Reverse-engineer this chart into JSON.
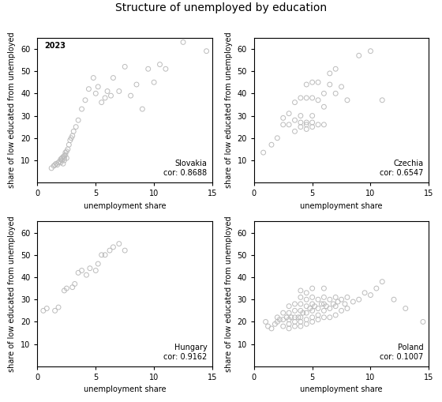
{
  "title": "Structure of unemployed by education",
  "year_label": "2023",
  "xlabel": "unemployment share",
  "ylabel": "share of low educated from unemployed",
  "xlim": [
    0,
    15
  ],
  "ylim": [
    0,
    65
  ],
  "xticks": [
    0,
    5,
    10,
    15
  ],
  "yticks": [
    10,
    20,
    30,
    40,
    50,
    60
  ],
  "background_color": "#ffffff",
  "marker_color": "#bbbbbb",
  "marker_size": 18,
  "marker_linewidth": 0.7,
  "countries": [
    "Slovakia",
    "Czechia",
    "Hungary",
    "Poland"
  ],
  "correlations": [
    "0.8688",
    "0.6547",
    "0.9162",
    "0.1007"
  ],
  "slovakia_x": [
    1.2,
    1.4,
    1.5,
    1.6,
    1.7,
    1.8,
    1.9,
    2.0,
    2.0,
    2.1,
    2.1,
    2.2,
    2.2,
    2.3,
    2.3,
    2.3,
    2.4,
    2.4,
    2.5,
    2.5,
    2.6,
    2.7,
    2.8,
    2.9,
    3.0,
    3.1,
    3.3,
    3.5,
    3.8,
    4.1,
    4.4,
    4.8,
    5.0,
    5.2,
    5.5,
    5.8,
    6.0,
    6.3,
    6.5,
    7.0,
    7.5,
    8.0,
    8.5,
    9.0,
    9.5,
    10.0,
    10.5,
    11.0,
    12.5,
    14.5
  ],
  "slovakia_y": [
    6.5,
    7.5,
    8.0,
    8.5,
    8.0,
    9.0,
    9.5,
    9.0,
    10.5,
    10.0,
    11.0,
    8.5,
    11.5,
    10.0,
    12.0,
    11.0,
    12.5,
    13.5,
    11.0,
    14.0,
    15.0,
    17.0,
    19.0,
    20.0,
    21.0,
    23.0,
    25.0,
    28.0,
    33.0,
    37.0,
    42.0,
    47.0,
    40.0,
    43.0,
    36.0,
    38.0,
    41.0,
    39.0,
    47.0,
    41.0,
    52.0,
    39.0,
    44.0,
    33.0,
    51.0,
    45.0,
    53.0,
    51.0,
    63.0,
    59.0
  ],
  "czechia_x": [
    0.8,
    1.5,
    2.0,
    2.5,
    2.5,
    3.0,
    3.0,
    3.5,
    3.5,
    3.5,
    4.0,
    4.0,
    4.0,
    4.0,
    4.5,
    4.5,
    4.5,
    4.5,
    4.5,
    5.0,
    5.0,
    5.0,
    5.0,
    5.0,
    5.5,
    5.5,
    5.5,
    6.0,
    6.0,
    6.0,
    6.5,
    6.5,
    7.0,
    7.0,
    7.5,
    8.0,
    9.0,
    10.0,
    11.0
  ],
  "czechia_y": [
    13.5,
    17.0,
    20.0,
    26.0,
    29.0,
    26.0,
    31.0,
    23.0,
    28.0,
    36.0,
    25.0,
    27.0,
    30.0,
    38.0,
    24.0,
    26.0,
    27.0,
    38.0,
    44.0,
    25.0,
    27.0,
    30.0,
    38.0,
    45.0,
    26.0,
    37.0,
    45.0,
    26.0,
    34.0,
    40.0,
    44.0,
    49.0,
    40.0,
    51.0,
    43.0,
    37.0,
    57.0,
    59.0,
    37.0
  ],
  "hungary_x": [
    0.5,
    0.8,
    1.5,
    1.8,
    2.3,
    2.5,
    3.0,
    3.2,
    3.5,
    3.8,
    4.2,
    4.5,
    5.0,
    5.2,
    5.5,
    5.8,
    6.2,
    6.5,
    7.0,
    7.5
  ],
  "hungary_y": [
    25.0,
    26.0,
    25.0,
    26.5,
    34.0,
    35.0,
    35.5,
    37.0,
    42.0,
    43.0,
    41.0,
    44.0,
    43.0,
    46.0,
    50.0,
    50.0,
    52.0,
    53.5,
    55.0,
    52.0
  ],
  "poland_x": [
    1.0,
    1.2,
    1.5,
    1.8,
    2.0,
    2.0,
    2.2,
    2.5,
    2.5,
    2.5,
    2.8,
    3.0,
    3.0,
    3.0,
    3.0,
    3.0,
    3.2,
    3.5,
    3.5,
    3.5,
    3.5,
    3.5,
    3.8,
    4.0,
    4.0,
    4.0,
    4.0,
    4.0,
    4.0,
    4.0,
    4.2,
    4.5,
    4.5,
    4.5,
    4.5,
    4.5,
    4.5,
    4.8,
    5.0,
    5.0,
    5.0,
    5.0,
    5.0,
    5.0,
    5.2,
    5.5,
    5.5,
    5.5,
    5.5,
    5.8,
    6.0,
    6.0,
    6.0,
    6.0,
    6.0,
    6.2,
    6.5,
    6.5,
    6.5,
    6.8,
    7.0,
    7.0,
    7.0,
    7.2,
    7.5,
    7.5,
    7.8,
    8.0,
    8.0,
    8.5,
    9.0,
    9.5,
    10.0,
    10.5,
    11.0,
    12.0,
    13.0,
    14.5
  ],
  "poland_y": [
    20.0,
    18.0,
    17.0,
    19.0,
    20.0,
    22.0,
    21.0,
    18.0,
    21.0,
    24.0,
    22.0,
    17.0,
    19.0,
    21.0,
    24.0,
    27.0,
    22.0,
    18.0,
    20.0,
    22.0,
    25.0,
    28.0,
    22.0,
    18.0,
    20.0,
    22.0,
    25.0,
    28.0,
    31.0,
    34.0,
    24.0,
    19.0,
    21.0,
    24.0,
    27.0,
    30.0,
    33.0,
    26.0,
    20.0,
    22.0,
    25.0,
    28.0,
    31.0,
    35.0,
    27.0,
    21.0,
    23.0,
    26.0,
    30.0,
    28.0,
    22.0,
    25.0,
    28.0,
    31.0,
    35.0,
    27.0,
    22.0,
    26.0,
    30.0,
    28.0,
    23.0,
    27.0,
    31.0,
    29.0,
    25.0,
    30.0,
    28.0,
    26.0,
    31.0,
    29.0,
    30.0,
    33.0,
    32.0,
    35.0,
    38.0,
    30.0,
    26.0,
    20.0
  ]
}
